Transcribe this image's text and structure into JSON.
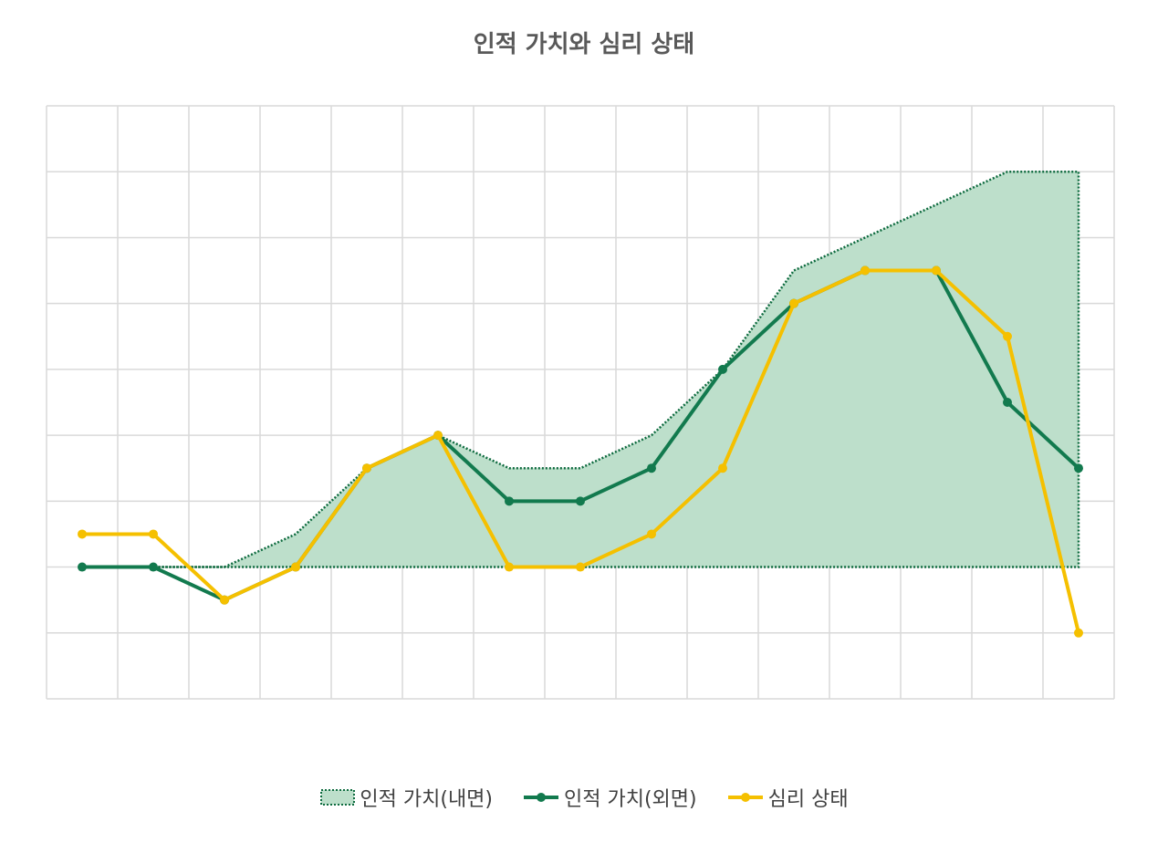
{
  "chart_data": {
    "type": "line",
    "title": "인적 가치와 심리 상태",
    "xlabel": "",
    "ylabel": "",
    "categories": [
      "",
      "",
      "",
      "",
      "",
      "",
      "",
      "",
      "",
      "",
      "",
      "",
      "",
      "",
      ""
    ],
    "ylim": [
      -4,
      14
    ],
    "grid": true,
    "legend_position": "bottom",
    "series": [
      {
        "name": "인적 가치(내면)",
        "render": "area",
        "color": "#BDDFCB",
        "border_color": "#0E6B3F",
        "values": [
          0,
          0,
          0,
          1,
          3,
          4,
          3,
          3,
          4,
          6,
          9,
          10,
          11,
          12,
          12
        ]
      },
      {
        "name": "인적 가치(외면)",
        "render": "line",
        "color": "#127A4E",
        "values": [
          0,
          0,
          -1,
          0,
          3,
          4,
          2,
          2,
          3,
          6,
          8,
          9,
          9,
          5,
          3
        ]
      },
      {
        "name": "심리 상태",
        "render": "line",
        "color": "#F5C000",
        "values": [
          1,
          1,
          -1,
          0,
          3,
          4,
          0,
          0,
          1,
          3,
          8,
          9,
          9,
          7,
          -2
        ]
      }
    ]
  }
}
